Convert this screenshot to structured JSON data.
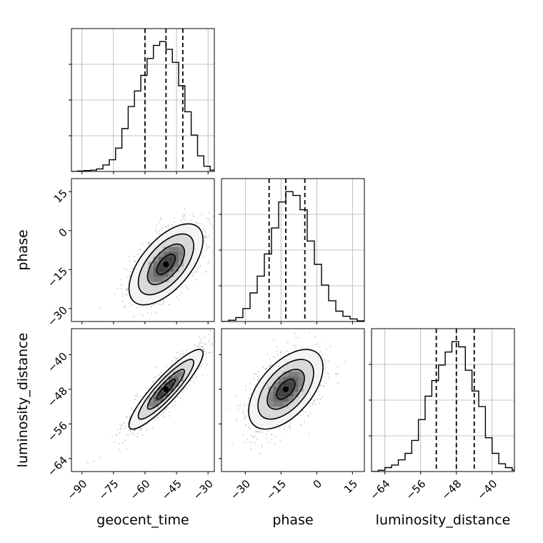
{
  "chart_data": [
    {
      "type": "histogram",
      "panel": "geocent_time-marginal",
      "parameter": "geocent_time",
      "xlim": [
        -95,
        -27
      ],
      "bin_edges": [
        -95,
        -92,
        -89,
        -86,
        -83,
        -80,
        -77,
        -74,
        -71,
        -68,
        -65,
        -62,
        -59,
        -56,
        -53,
        -50,
        -47,
        -44,
        -41,
        -38,
        -35,
        -32,
        -29,
        -27
      ],
      "counts": [
        0,
        0.004,
        0.007,
        0.01,
        0.02,
        0.05,
        0.09,
        0.18,
        0.33,
        0.5,
        0.62,
        0.74,
        0.87,
        0.97,
        1.0,
        0.94,
        0.84,
        0.66,
        0.46,
        0.28,
        0.12,
        0.04,
        0.01
      ],
      "quantiles": [
        -60,
        -50,
        -42
      ],
      "grid": true
    },
    {
      "type": "histogram",
      "panel": "phase-marginal",
      "parameter": "phase",
      "xlim": [
        -40,
        20
      ],
      "bin_edges": [
        -40,
        -37,
        -34,
        -31,
        -28,
        -25,
        -22,
        -19,
        -16,
        -13,
        -10,
        -7,
        -4,
        -1,
        2,
        5,
        8,
        11,
        14,
        17,
        20
      ],
      "counts": [
        0,
        0.01,
        0.03,
        0.1,
        0.22,
        0.35,
        0.52,
        0.72,
        0.92,
        1.0,
        0.97,
        0.86,
        0.62,
        0.44,
        0.28,
        0.16,
        0.08,
        0.04,
        0.02,
        0.005
      ],
      "quantiles": [
        -20,
        -13,
        -5
      ],
      "grid": true
    },
    {
      "type": "histogram",
      "panel": "luminosity_distance-marginal",
      "parameter": "luminosity_distance",
      "xlim": [
        -67,
        -35
      ],
      "bin_edges": [
        -67,
        -65.5,
        -64,
        -62.5,
        -61,
        -59.5,
        -58,
        -56.5,
        -55,
        -53.5,
        -52,
        -50.5,
        -49,
        -47.5,
        -46,
        -44.5,
        -43,
        -41.5,
        -40,
        -38.5,
        -37,
        -35.5,
        -35
      ],
      "counts": [
        0,
        0.01,
        0.03,
        0.05,
        0.09,
        0.14,
        0.24,
        0.4,
        0.58,
        0.7,
        0.82,
        0.92,
        1.0,
        0.96,
        0.78,
        0.62,
        0.5,
        0.26,
        0.14,
        0.06,
        0.03,
        0.01
      ],
      "quantiles": [
        -52.5,
        -48,
        -44
      ],
      "grid": true
    },
    {
      "type": "contour",
      "panel": "phase-vs-geocent_time",
      "x": "geocent_time",
      "y": "phase",
      "xlim": [
        -95,
        -27
      ],
      "ylim": [
        -35,
        20
      ],
      "center": [
        -50,
        -13
      ],
      "sigma": [
        8.8,
        7.8
      ],
      "rho": 0.6,
      "levels": [
        0.5,
        1.0,
        1.5,
        2.0
      ]
    },
    {
      "type": "contour",
      "panel": "luminosity_distance-vs-geocent_time",
      "x": "geocent_time",
      "y": "luminosity_distance",
      "xlim": [
        -95,
        -27
      ],
      "ylim": [
        -67,
        -34
      ],
      "center": [
        -50,
        -48
      ],
      "sigma": [
        8.8,
        4.6
      ],
      "rho": 0.9,
      "levels": [
        0.5,
        1.0,
        1.5,
        2.0
      ]
    },
    {
      "type": "contour",
      "panel": "luminosity_distance-vs-phase",
      "x": "phase",
      "y": "luminosity_distance",
      "xlim": [
        -40,
        20
      ],
      "ylim": [
        -67,
        -34
      ],
      "center": [
        -13,
        -48
      ],
      "sigma": [
        7.8,
        4.6
      ],
      "rho": 0.55,
      "levels": [
        0.5,
        1.0,
        1.5,
        2.0
      ]
    }
  ],
  "axes": {
    "geocent_time": {
      "label": "geocent_time",
      "ticks": [
        -90,
        -75,
        -60,
        -45,
        -30
      ],
      "tick_labels": [
        "−90",
        "−75",
        "−60",
        "−45",
        "−30"
      ]
    },
    "phase": {
      "label": "phase",
      "ticks": [
        -30,
        -15,
        0,
        15
      ],
      "tick_labels": [
        "−30",
        "−15",
        "0",
        "15"
      ]
    },
    "luminosity_distance": {
      "label": "luminosity_distance",
      "ticks": [
        -64,
        -56,
        -48,
        -40
      ],
      "tick_labels": [
        "−64",
        "−56",
        "−48",
        "−40"
      ]
    }
  },
  "style": {
    "line_color": "#000000",
    "grid_color": "#b0b0b0",
    "scatter_color": "#9a9a9a"
  }
}
